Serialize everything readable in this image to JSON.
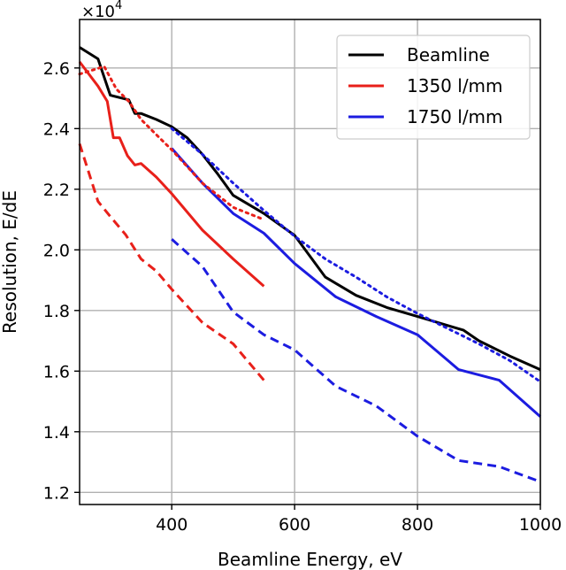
{
  "chart_data": {
    "type": "line",
    "title": "",
    "xlabel": "Beamline Energy, eV",
    "ylabel": "Resolution, E/dE",
    "y_multiplier": "×10",
    "y_multiplier_exp": "4",
    "xlim": [
      250,
      1000
    ],
    "ylim": [
      11600,
      27600
    ],
    "grid": true,
    "legend_position": "top-right",
    "x_ticks": [
      {
        "value": 400,
        "label": "400"
      },
      {
        "value": 600,
        "label": "600"
      },
      {
        "value": 800,
        "label": "800"
      },
      {
        "value": 1000,
        "label": "1000"
      }
    ],
    "y_ticks": [
      {
        "value": 12000,
        "label": "1.2"
      },
      {
        "value": 14000,
        "label": "1.4"
      },
      {
        "value": 16000,
        "label": "1.6"
      },
      {
        "value": 18000,
        "label": "1.8"
      },
      {
        "value": 20000,
        "label": "2.0"
      },
      {
        "value": 22000,
        "label": "2.2"
      },
      {
        "value": 24000,
        "label": "2.4"
      },
      {
        "value": 26000,
        "label": "2.6"
      }
    ],
    "series": [
      {
        "id": "beamline",
        "name": "Beamline",
        "color": "#000000",
        "style": "solid",
        "in_legend": true,
        "points": [
          [
            250,
            26680
          ],
          [
            280,
            26300
          ],
          [
            300,
            25100
          ],
          [
            320,
            25000
          ],
          [
            330,
            24950
          ],
          [
            340,
            24500
          ],
          [
            350,
            24500
          ],
          [
            375,
            24300
          ],
          [
            400,
            24060
          ],
          [
            425,
            23700
          ],
          [
            450,
            23150
          ],
          [
            475,
            22500
          ],
          [
            500,
            21800
          ],
          [
            550,
            21200
          ],
          [
            600,
            20480
          ],
          [
            650,
            19100
          ],
          [
            700,
            18500
          ],
          [
            750,
            18100
          ],
          [
            800,
            17800
          ],
          [
            850,
            17500
          ],
          [
            875,
            17350
          ],
          [
            900,
            17000
          ],
          [
            950,
            16500
          ],
          [
            1000,
            16050
          ]
        ]
      },
      {
        "id": "red-solid",
        "name": "1350 l/mm",
        "color": "#e8201a",
        "style": "solid",
        "in_legend": true,
        "points": [
          [
            250,
            26200
          ],
          [
            280,
            25400
          ],
          [
            295,
            24900
          ],
          [
            305,
            23700
          ],
          [
            315,
            23700
          ],
          [
            328,
            23100
          ],
          [
            340,
            22800
          ],
          [
            350,
            22850
          ],
          [
            375,
            22400
          ],
          [
            400,
            21850
          ],
          [
            450,
            20650
          ],
          [
            500,
            19700
          ],
          [
            550,
            18800
          ]
        ]
      },
      {
        "id": "blue-solid",
        "name": "1750 l/mm",
        "color": "#1c1ce0",
        "style": "solid",
        "in_legend": true,
        "points": [
          [
            400,
            23350
          ],
          [
            450,
            22200
          ],
          [
            500,
            21200
          ],
          [
            550,
            20550
          ],
          [
            600,
            19550
          ],
          [
            667,
            18450
          ],
          [
            733,
            17800
          ],
          [
            800,
            17200
          ],
          [
            867,
            16050
          ],
          [
            933,
            15700
          ],
          [
            1000,
            14500
          ]
        ]
      },
      {
        "id": "red-dotted",
        "color": "#e8201a",
        "style": "dotted",
        "in_legend": false,
        "points": [
          [
            250,
            25800
          ],
          [
            290,
            26050
          ],
          [
            310,
            25300
          ],
          [
            330,
            24900
          ],
          [
            350,
            24300
          ],
          [
            375,
            23800
          ],
          [
            400,
            23300
          ],
          [
            450,
            22200
          ],
          [
            500,
            21400
          ],
          [
            550,
            21000
          ]
        ]
      },
      {
        "id": "blue-dotted",
        "color": "#1c1ce0",
        "style": "dotted",
        "in_legend": false,
        "points": [
          [
            400,
            24000
          ],
          [
            450,
            23150
          ],
          [
            500,
            22200
          ],
          [
            550,
            21300
          ],
          [
            600,
            20450
          ],
          [
            650,
            19700
          ],
          [
            700,
            19100
          ],
          [
            750,
            18450
          ],
          [
            800,
            17900
          ],
          [
            850,
            17400
          ],
          [
            900,
            16900
          ],
          [
            950,
            16350
          ],
          [
            1000,
            15650
          ]
        ]
      },
      {
        "id": "red-dashed",
        "color": "#e8201a",
        "style": "dashed",
        "in_legend": false,
        "points": [
          [
            250,
            23500
          ],
          [
            280,
            21600
          ],
          [
            300,
            21100
          ],
          [
            325,
            20500
          ],
          [
            350,
            19700
          ],
          [
            375,
            19300
          ],
          [
            400,
            18700
          ],
          [
            450,
            17600
          ],
          [
            500,
            16900
          ],
          [
            550,
            15700
          ]
        ]
      },
      {
        "id": "blue-dashed",
        "color": "#1c1ce0",
        "style": "dashed",
        "in_legend": false,
        "points": [
          [
            400,
            20350
          ],
          [
            450,
            19450
          ],
          [
            500,
            17950
          ],
          [
            550,
            17200
          ],
          [
            600,
            16700
          ],
          [
            667,
            15500
          ],
          [
            733,
            14850
          ],
          [
            800,
            13850
          ],
          [
            867,
            13050
          ],
          [
            933,
            12850
          ],
          [
            1000,
            12350
          ]
        ]
      }
    ]
  }
}
